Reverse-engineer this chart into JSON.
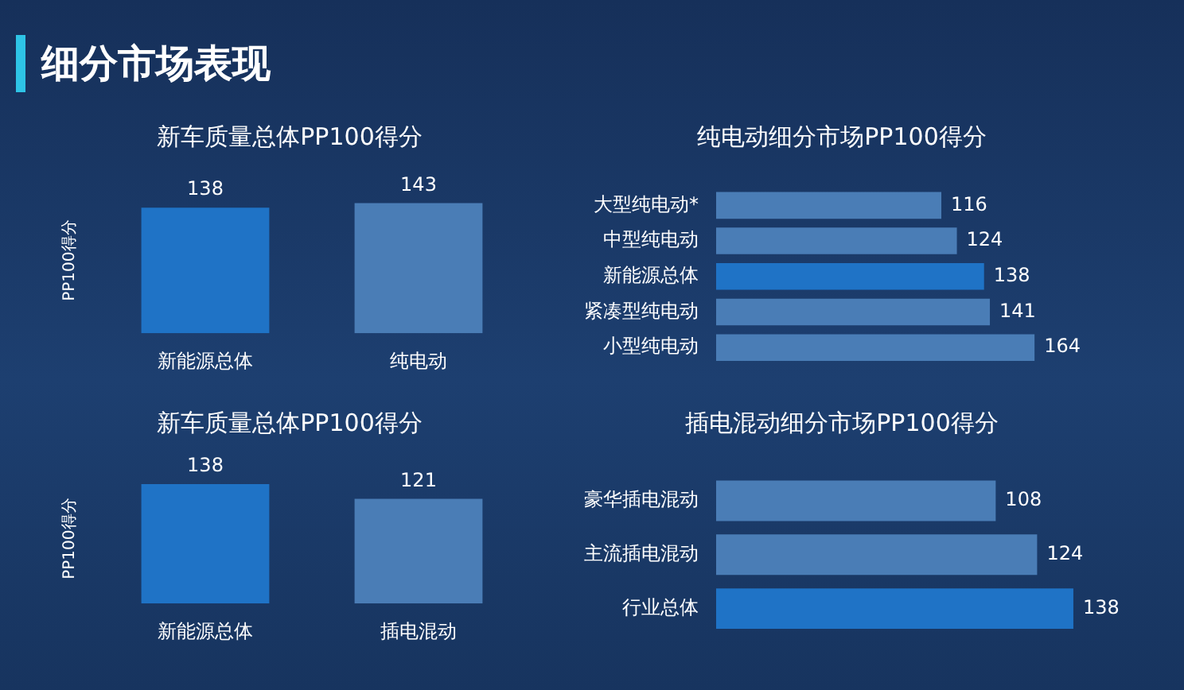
{
  "chart_data": [
    {
      "type": "other",
      "title": "细分市场表现"
    },
    {
      "type": "bar",
      "title": "新车质量总体PP100得分",
      "ylabel": "PP100得分",
      "categories": [
        "新能源总体",
        "纯电动"
      ],
      "values": [
        138,
        143
      ],
      "colors": [
        "#1f73c6",
        "#4a7db6"
      ],
      "data_labels": true,
      "tick_labels": "x"
    },
    {
      "type": "bar",
      "orientation": "horizontal",
      "title": "纯电动细分市场PP100得分",
      "categories": [
        "大型纯电动*",
        "中型纯电动",
        "新能源总体",
        "紧凑型纯电动",
        "小型纯电动"
      ],
      "values": [
        116,
        124,
        138,
        141,
        164
      ],
      "colors": [
        "#4a7db6",
        "#4a7db6",
        "#1f73c6",
        "#4a7db6",
        "#4a7db6"
      ],
      "data_labels": true,
      "tick_labels": "y"
    },
    {
      "type": "bar",
      "title": "新车质量总体PP100得分",
      "ylabel": "PP100得分",
      "categories": [
        "新能源总体",
        "插电混动"
      ],
      "values": [
        138,
        121
      ],
      "colors": [
        "#1f73c6",
        "#4a7db6"
      ],
      "data_labels": true,
      "tick_labels": "x"
    },
    {
      "type": "bar",
      "orientation": "horizontal",
      "title": "插电混动细分市场PP100得分",
      "categories": [
        "豪华插电混动",
        "主流插电混动",
        "行业总体"
      ],
      "values": [
        108,
        124,
        138
      ],
      "colors": [
        "#4a7db6",
        "#4a7db6",
        "#1f73c6"
      ],
      "data_labels": true,
      "tick_labels": "y"
    }
  ]
}
